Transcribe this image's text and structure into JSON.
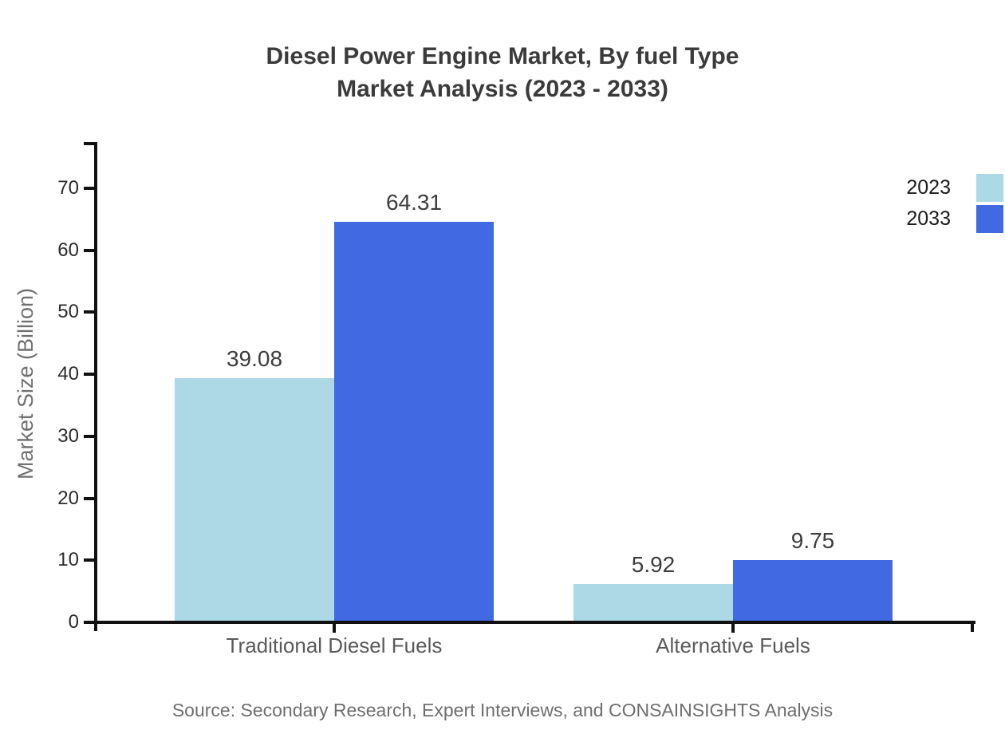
{
  "title": {
    "line1": "Diesel Power Engine Market, By fuel Type",
    "line2": "Market Analysis (2023 - 2033)"
  },
  "source": "Source: Secondary Research, Expert Interviews, and CONSAINSIGHTS Analysis",
  "chart_data": {
    "type": "bar",
    "title": "Diesel Power Engine Market, By fuel Type Market Analysis (2023 - 2033)",
    "categories": [
      "Traditional Diesel Fuels",
      "Alternative Fuels"
    ],
    "series": [
      {
        "name": "2023",
        "color": "#ADD8E6",
        "values": [
          39.08,
          5.92
        ]
      },
      {
        "name": "2033",
        "color": "#4169E1",
        "values": [
          64.31,
          9.75
        ]
      }
    ],
    "xlabel": "",
    "ylabel": "Market Size (Billion)",
    "ylim": [
      0,
      77.2
    ],
    "yticks": [
      0,
      10,
      20,
      30,
      40,
      50,
      60,
      70
    ],
    "grid": false,
    "value_labels": true,
    "legend_position": "top-right",
    "axis_color": "#111111"
  }
}
